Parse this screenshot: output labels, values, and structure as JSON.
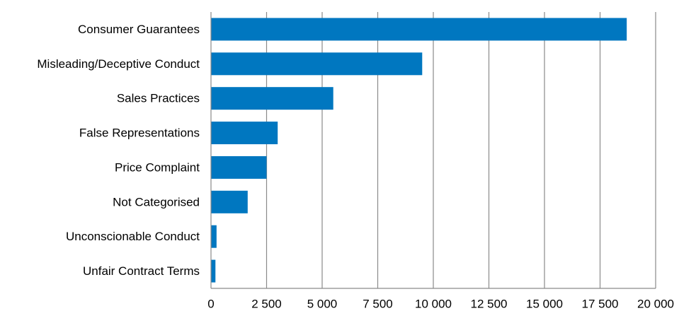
{
  "chart_data": {
    "type": "bar",
    "orientation": "horizontal",
    "categories": [
      "Consumer Guarantees",
      "Misleading/Deceptive Conduct",
      "Sales Practices",
      "False Representations",
      "Price Complaint",
      "Not Categorised",
      "Unconscionable Conduct",
      "Unfair Contract Terms"
    ],
    "values": [
      18700,
      9500,
      5500,
      3000,
      2500,
      1650,
      250,
      200
    ],
    "title": "",
    "xlabel": "",
    "ylabel": "",
    "xlim": [
      0,
      20000
    ],
    "xticks": [
      0,
      2500,
      5000,
      7500,
      10000,
      12500,
      15000,
      17500,
      20000
    ],
    "xtick_labels": [
      "0",
      "2 500",
      "5 000",
      "7 500",
      "10 000",
      "12 500",
      "15 000",
      "17 500",
      "20 000"
    ],
    "grid": "vertical",
    "legend": "none",
    "bar_color": "#0077C0",
    "grid_color": "#8A8A8A"
  }
}
